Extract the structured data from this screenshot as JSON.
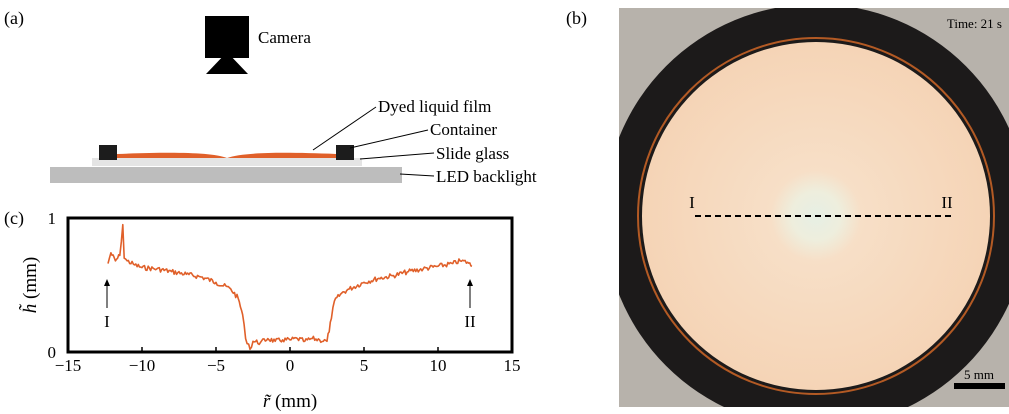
{
  "panel_a": {
    "label": "(a)",
    "camera_label": "Camera",
    "dyed_film_label": "Dyed liquid film",
    "container_label": "Container",
    "slide_glass_label": "Slide glass",
    "led_backlight_label": "LED backlight"
  },
  "panel_b": {
    "label": "(b)",
    "time_text": "Time: 21 s",
    "marker_left": "I",
    "marker_right": "II",
    "scalebar_text": "5 mm",
    "colors": {
      "ring": "#1c1a1a",
      "film": "#f6dcc4",
      "background": "#b7b2ab",
      "center": "#e6efe4"
    }
  },
  "panel_c": {
    "label": "(c)",
    "marker_left": "I",
    "marker_right": "II",
    "xlabel_sym": "r̃",
    "xlabel_unit": " (mm)",
    "ylabel_sym": "h̃",
    "ylabel_unit": " (mm)",
    "xticks": [
      "−15",
      "−10",
      "−5",
      "0",
      "5",
      "10",
      "15"
    ],
    "yticks": [
      "0",
      "1"
    ]
  },
  "chart_data": {
    "type": "line",
    "title": "",
    "xlabel": "r̃ (mm)",
    "ylabel": "h̃ (mm)",
    "xlim": [
      -15,
      15
    ],
    "ylim": [
      0,
      1
    ],
    "series": [
      {
        "color": "#e0602a",
        "x": [
          -12.3,
          -12.1,
          -11.8,
          -11.5,
          -11.3,
          -11.2,
          -11.0,
          -10.5,
          -10,
          -9,
          -8,
          -7,
          -6,
          -5,
          -4,
          -3.5,
          -3.2,
          -3.0,
          -2.8,
          -2.7,
          -2.5,
          -2,
          -1.5,
          -1,
          -0.5,
          0,
          0.5,
          1,
          1.5,
          2,
          2.5,
          2.8,
          3.0,
          3.5,
          4,
          5,
          6,
          7,
          8,
          9,
          10,
          11,
          11.5,
          12,
          12.3
        ],
        "y": [
          0.66,
          0.74,
          0.68,
          0.72,
          0.95,
          0.7,
          0.68,
          0.65,
          0.63,
          0.62,
          0.6,
          0.58,
          0.56,
          0.52,
          0.47,
          0.4,
          0.28,
          0.1,
          0.06,
          0.02,
          0.08,
          0.07,
          0.1,
          0.08,
          0.09,
          0.09,
          0.1,
          0.08,
          0.1,
          0.09,
          0.08,
          0.25,
          0.38,
          0.44,
          0.47,
          0.52,
          0.55,
          0.57,
          0.6,
          0.62,
          0.64,
          0.66,
          0.68,
          0.67,
          0.64
        ]
      }
    ]
  }
}
